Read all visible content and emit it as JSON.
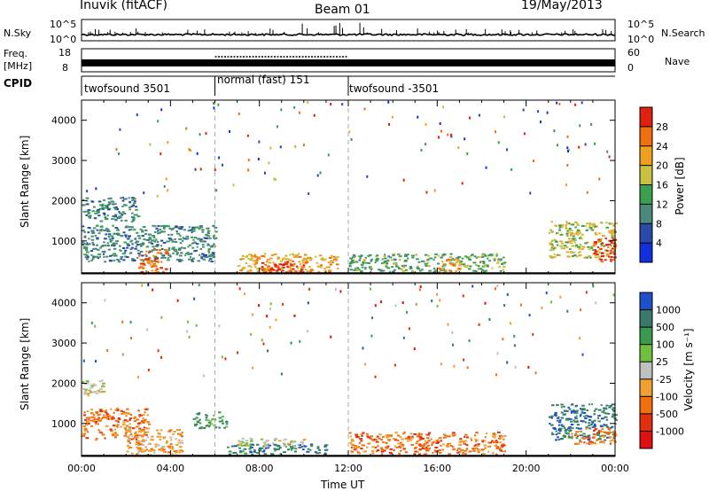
{
  "header": {
    "left_title": "Inuvik (fitACF)",
    "center_title": "Beam 01",
    "right_date": "19/May/2013"
  },
  "small_panels": {
    "nsky_label": "N.Sky",
    "nsearch_label": "N.Search",
    "freq_label_1": "Freq.",
    "freq_label_2": "[MHz]",
    "nave_label": "Nave",
    "cpid_label": "CPID",
    "noise_left_ticks": [
      "10^5",
      "10^0"
    ],
    "noise_right_ticks": [
      "10^5",
      "10^0"
    ],
    "freq_left_ticks": [
      "18",
      "8"
    ],
    "nave_right_ticks": [
      "60",
      "0"
    ]
  },
  "cpid_segments": [
    {
      "name": "twofsound 3501",
      "start_hour": 0,
      "end_hour": 6
    },
    {
      "name": "normal (fast) 151",
      "start_hour": 6,
      "end_hour": 12
    },
    {
      "name": "twofsound -3501",
      "start_hour": 12,
      "end_hour": 24
    }
  ],
  "chart_data": [
    {
      "type": "heatmap",
      "panel": "power",
      "ylabel": "Slant Range [km]",
      "yticks": [
        "1000",
        "2000",
        "3000",
        "4000"
      ],
      "ylim": [
        180,
        4500
      ],
      "xlim": [
        0,
        24
      ],
      "colorbar_label": "Power [dB]",
      "colorbar_ticks": [
        "4",
        "8",
        "12",
        "16",
        "20",
        "24",
        "28"
      ],
      "colorbar_colors": [
        "#1030e0",
        "#2a4aa8",
        "#4a8a7a",
        "#3aa050",
        "#c8c040",
        "#f0a020",
        "#f07010",
        "#e02010"
      ],
      "echo_regions": [
        {
          "t0": 0.0,
          "t1": 2.5,
          "r0": 1500,
          "r1": 2100,
          "level": 2
        },
        {
          "t0": 0.0,
          "t1": 6.0,
          "r0": 500,
          "r1": 1400,
          "level": 2
        },
        {
          "t0": 2.5,
          "t1": 3.8,
          "r0": 200,
          "r1": 800,
          "level": 6
        },
        {
          "t0": 7.0,
          "t1": 11.5,
          "r0": 250,
          "r1": 700,
          "level": 5
        },
        {
          "t0": 8.0,
          "t1": 10.0,
          "r0": 200,
          "r1": 500,
          "level": 7
        },
        {
          "t0": 12.0,
          "t1": 19.0,
          "r0": 250,
          "r1": 700,
          "level": 3
        },
        {
          "t0": 16.0,
          "t1": 17.0,
          "r0": 250,
          "r1": 600,
          "level": 5
        },
        {
          "t0": 21.0,
          "t1": 24.0,
          "r0": 600,
          "r1": 1500,
          "level": 4
        },
        {
          "t0": 23.0,
          "t1": 24.0,
          "r0": 500,
          "r1": 1100,
          "level": 7
        }
      ]
    },
    {
      "type": "heatmap",
      "panel": "velocity",
      "ylabel": "Slant Range [km]",
      "yticks": [
        "1000",
        "2000",
        "3000",
        "4000"
      ],
      "ylim": [
        180,
        4500
      ],
      "xlim": [
        0,
        24
      ],
      "xlabel": "Time UT",
      "xticks": [
        "00:00",
        "04:00",
        "08:00",
        "12:00",
        "16:00",
        "20:00",
        "00:00"
      ],
      "colorbar_label": "Velocity [m s⁻¹]",
      "colorbar_ticks": [
        "1000",
        "500",
        "100",
        "25",
        "-25",
        "-100",
        "-500",
        "-1000"
      ],
      "colorbar_colors": [
        "#2050c8",
        "#3a7a6a",
        "#3a9a50",
        "#70c040",
        "#c0c0c0",
        "#f0a030",
        "#f07010",
        "#e03010",
        "#e01010"
      ],
      "echo_regions": [
        {
          "t0": 0.0,
          "t1": 1.0,
          "r0": 1700,
          "r1": 2100,
          "level": 4
        },
        {
          "t0": 0.0,
          "t1": 3.0,
          "r0": 600,
          "r1": 1400,
          "level": 6
        },
        {
          "t0": 2.0,
          "t1": 4.5,
          "r0": 200,
          "r1": 900,
          "level": 5
        },
        {
          "t0": 5.0,
          "t1": 6.5,
          "r0": 900,
          "r1": 1300,
          "level": 2
        },
        {
          "t0": 6.5,
          "t1": 11.0,
          "r0": 250,
          "r1": 500,
          "level": 1
        },
        {
          "t0": 7.0,
          "t1": 10.0,
          "r0": 450,
          "r1": 650,
          "level": 4
        },
        {
          "t0": 12.0,
          "t1": 19.0,
          "r0": 250,
          "r1": 800,
          "level": 6
        },
        {
          "t0": 21.0,
          "t1": 24.0,
          "r0": 600,
          "r1": 1500,
          "level": 1
        },
        {
          "t0": 22.0,
          "t1": 24.0,
          "r0": 500,
          "r1": 900,
          "level": 6
        }
      ]
    }
  ]
}
